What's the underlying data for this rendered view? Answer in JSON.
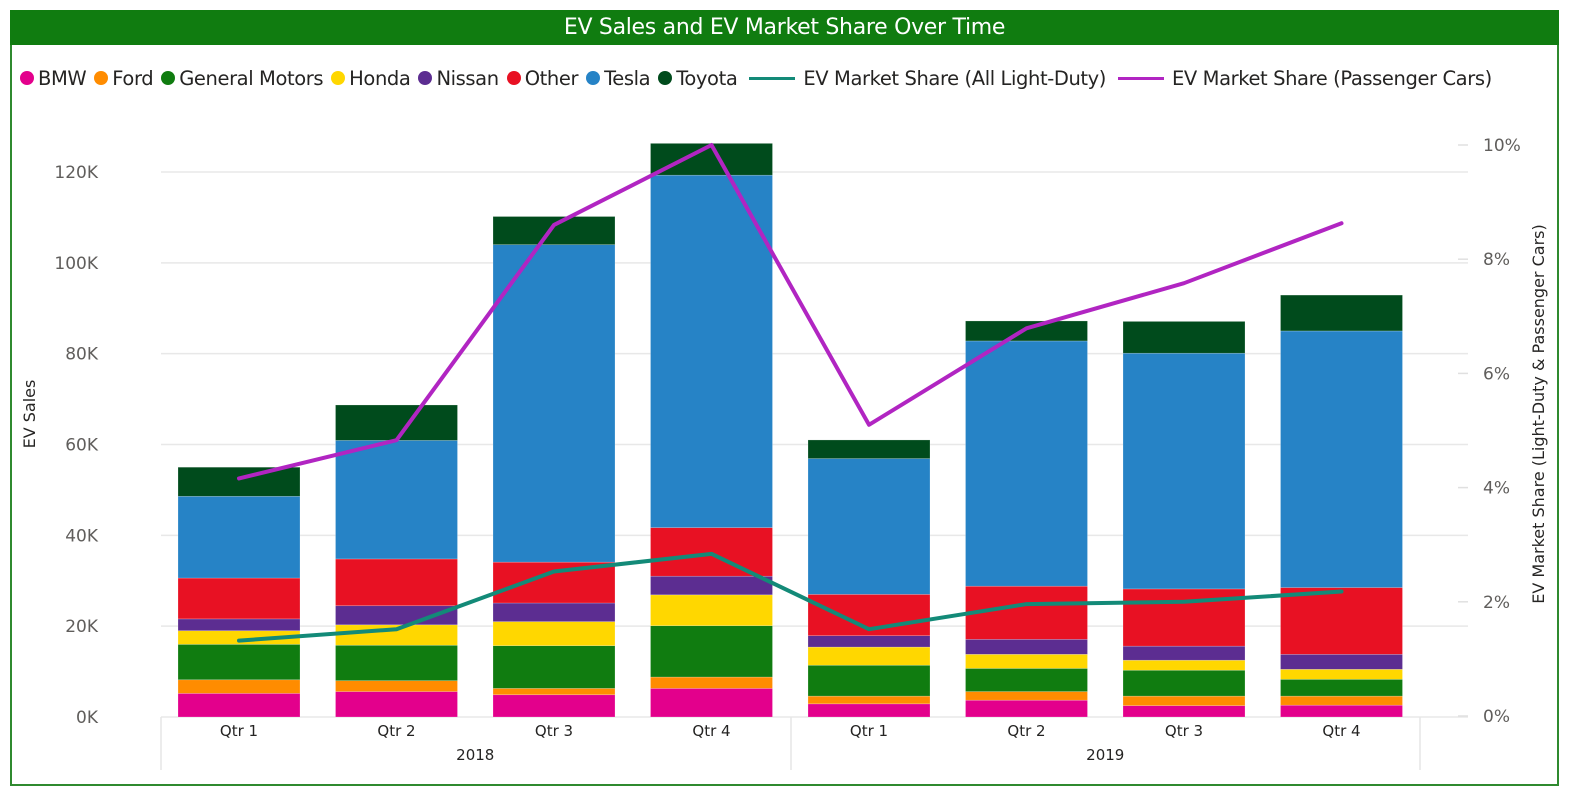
{
  "title": "EV Sales and EV Market Share Over Time",
  "legend": {
    "bar_series": [
      {
        "name": "BMW",
        "color": "#e3008c"
      },
      {
        "name": "Ford",
        "color": "#ff8c00"
      },
      {
        "name": "General Motors",
        "color": "#107c10"
      },
      {
        "name": "Honda",
        "color": "#ffd700"
      },
      {
        "name": "Nissan",
        "color": "#5c2d91"
      },
      {
        "name": "Other",
        "color": "#e81123"
      },
      {
        "name": "Tesla",
        "color": "#2683c6"
      },
      {
        "name": "Toyota",
        "color": "#004b1c"
      }
    ],
    "line_series": [
      {
        "name": "EV Market Share (All Light-Duty)",
        "color": "#138a78"
      },
      {
        "name": "EV Market Share (Passenger Cars)",
        "color": "#b125c2"
      }
    ]
  },
  "chart_data": {
    "type": "bar",
    "subtype": "stacked-bar-with-lines",
    "title": "EV Sales and EV Market Share Over Time",
    "xlabel": "",
    "ylabel": "EV Sales",
    "y2label": "EV Market Share (Light-Duty & Passenger Cars)",
    "ylim": [
      0,
      125000
    ],
    "y2lim": [
      0,
      10
    ],
    "yticks": [
      "0K",
      "20K",
      "40K",
      "60K",
      "80K",
      "100K",
      "120K"
    ],
    "ytick_values": [
      0,
      20000,
      40000,
      60000,
      80000,
      100000,
      120000
    ],
    "y2ticks": [
      "0%",
      "2%",
      "4%",
      "6%",
      "8%",
      "10%"
    ],
    "y2tick_values": [
      0,
      2,
      4,
      6,
      8,
      10
    ],
    "grid": true,
    "legend_position": "top-left",
    "categories": [
      "Qtr 1",
      "Qtr 2",
      "Qtr 3",
      "Qtr 4",
      "Qtr 1",
      "Qtr 2",
      "Qtr 3",
      "Qtr 4"
    ],
    "groups": [
      {
        "label": "2018",
        "categories": [
          0,
          1,
          2,
          3
        ]
      },
      {
        "label": "2019",
        "categories": [
          4,
          5,
          6,
          7
        ]
      }
    ],
    "series": [
      {
        "name": "BMW",
        "values": [
          5200,
          5600,
          4900,
          6300,
          2900,
          3700,
          2500,
          2600
        ]
      },
      {
        "name": "Ford",
        "values": [
          3000,
          2400,
          1400,
          2500,
          1700,
          1900,
          2100,
          2000
        ]
      },
      {
        "name": "General Motors",
        "values": [
          7800,
          7800,
          9400,
          11300,
          6800,
          5100,
          5700,
          3700
        ]
      },
      {
        "name": "Honda",
        "values": [
          3000,
          4500,
          5300,
          6800,
          4000,
          3100,
          2200,
          2200
        ]
      },
      {
        "name": "Nissan",
        "values": [
          2600,
          4200,
          4100,
          4100,
          2500,
          3300,
          3100,
          3300
        ]
      },
      {
        "name": "Other",
        "values": [
          9000,
          10300,
          9000,
          10700,
          9100,
          11700,
          12600,
          14700
        ]
      },
      {
        "name": "Tesla",
        "values": [
          18000,
          26100,
          69900,
          77600,
          29900,
          54000,
          51900,
          56500
        ]
      },
      {
        "name": "Toyota",
        "values": [
          6400,
          7800,
          6200,
          7000,
          4100,
          4400,
          7000,
          7900
        ]
      }
    ],
    "line_series": [
      {
        "name": "EV Market Share (All Light-Duty)",
        "axis": "right",
        "values": [
          1.32,
          1.52,
          2.53,
          2.84,
          1.52,
          1.96,
          2.0,
          2.18
        ]
      },
      {
        "name": "EV Market Share (Passenger Cars)",
        "axis": "right",
        "values": [
          4.16,
          4.83,
          8.6,
          10.0,
          5.1,
          6.79,
          7.58,
          8.63
        ]
      }
    ]
  }
}
